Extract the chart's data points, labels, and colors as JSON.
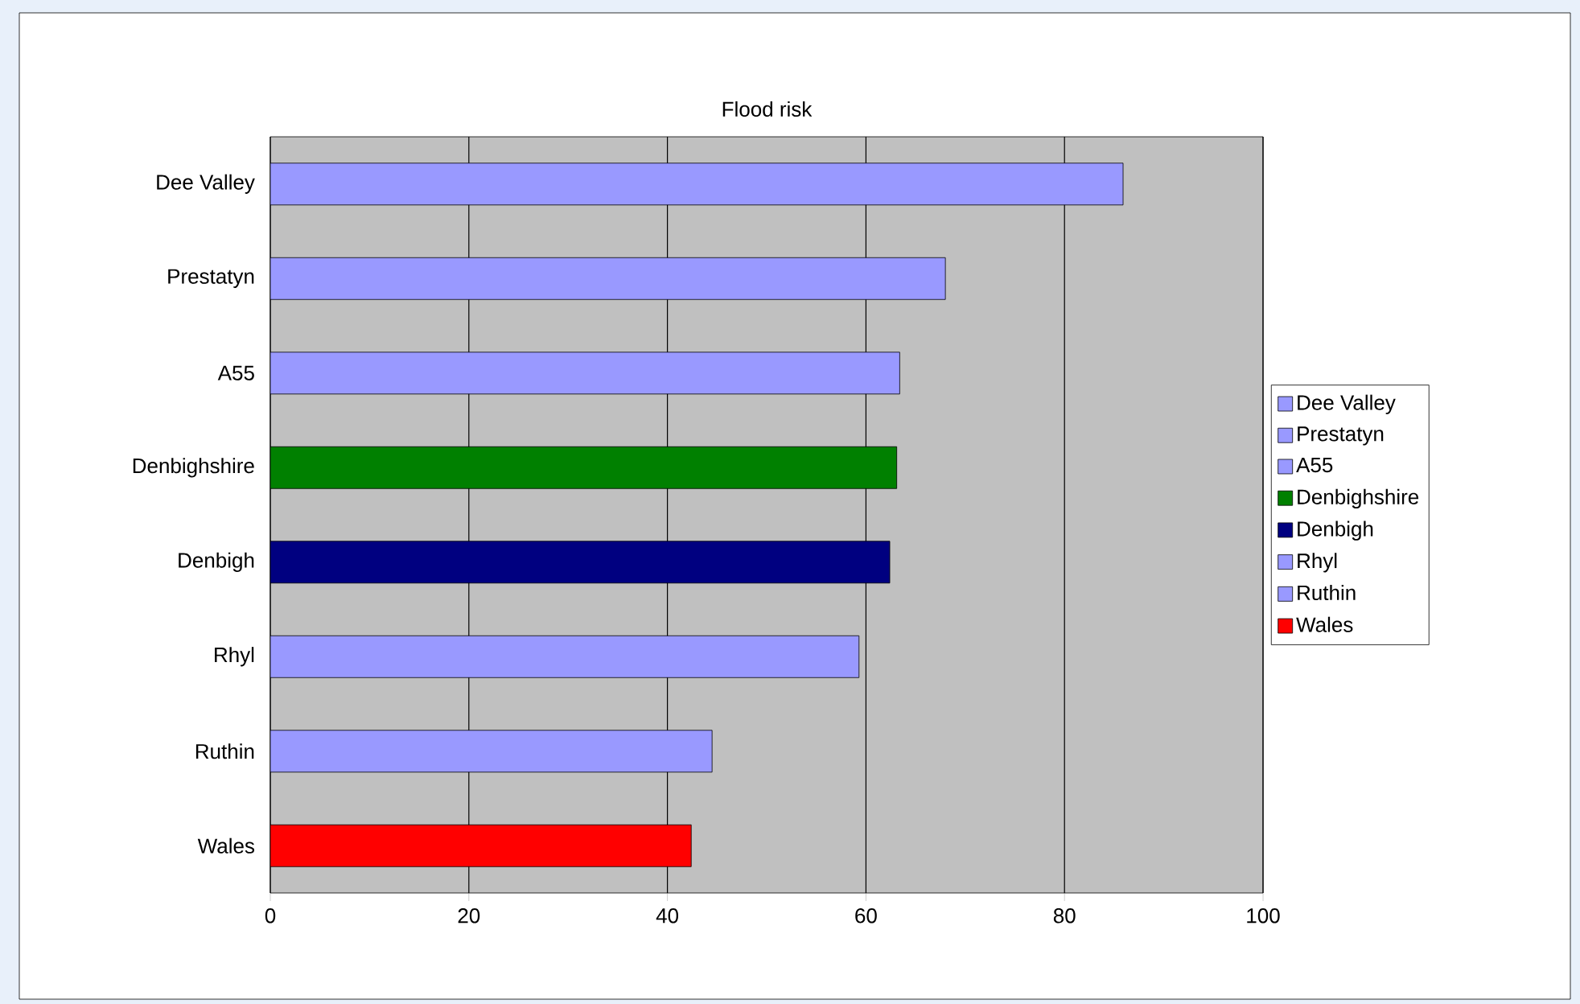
{
  "chart_data": {
    "type": "bar",
    "orientation": "horizontal",
    "title": "Flood risk",
    "categories": [
      "Dee Valley",
      "Prestatyn",
      "A55",
      "Denbighshire",
      "Denbigh",
      "Rhyl",
      "Ruthin",
      "Wales"
    ],
    "series": [
      {
        "name": "Dee Valley",
        "color": "#9999ff",
        "values": [
          85.9,
          null,
          null,
          null,
          null,
          null,
          null,
          null
        ]
      },
      {
        "name": "Prestatyn",
        "color": "#9999ff",
        "values": [
          null,
          68.0,
          null,
          null,
          null,
          null,
          null,
          null
        ]
      },
      {
        "name": "A55",
        "color": "#9999ff",
        "values": [
          null,
          null,
          63.4,
          null,
          null,
          null,
          null,
          null
        ]
      },
      {
        "name": "Denbighshire",
        "color": "#008000",
        "values": [
          null,
          null,
          null,
          63.1,
          null,
          null,
          null,
          null
        ]
      },
      {
        "name": "Denbigh",
        "color": "#000080",
        "values": [
          null,
          null,
          null,
          null,
          62.4,
          null,
          null,
          null
        ]
      },
      {
        "name": "Rhyl",
        "color": "#9999ff",
        "values": [
          null,
          null,
          null,
          null,
          null,
          59.3,
          null,
          null
        ]
      },
      {
        "name": "Ruthin",
        "color": "#9999ff",
        "values": [
          null,
          null,
          null,
          null,
          null,
          null,
          44.5,
          null
        ]
      },
      {
        "name": "Wales",
        "color": "#ff0000",
        "values": [
          null,
          null,
          null,
          null,
          null,
          null,
          null,
          42.4
        ]
      }
    ],
    "xlim": [
      0,
      100
    ],
    "xticks": [
      0,
      20,
      40,
      60,
      80,
      100
    ],
    "grid": "x",
    "legend": "right"
  }
}
